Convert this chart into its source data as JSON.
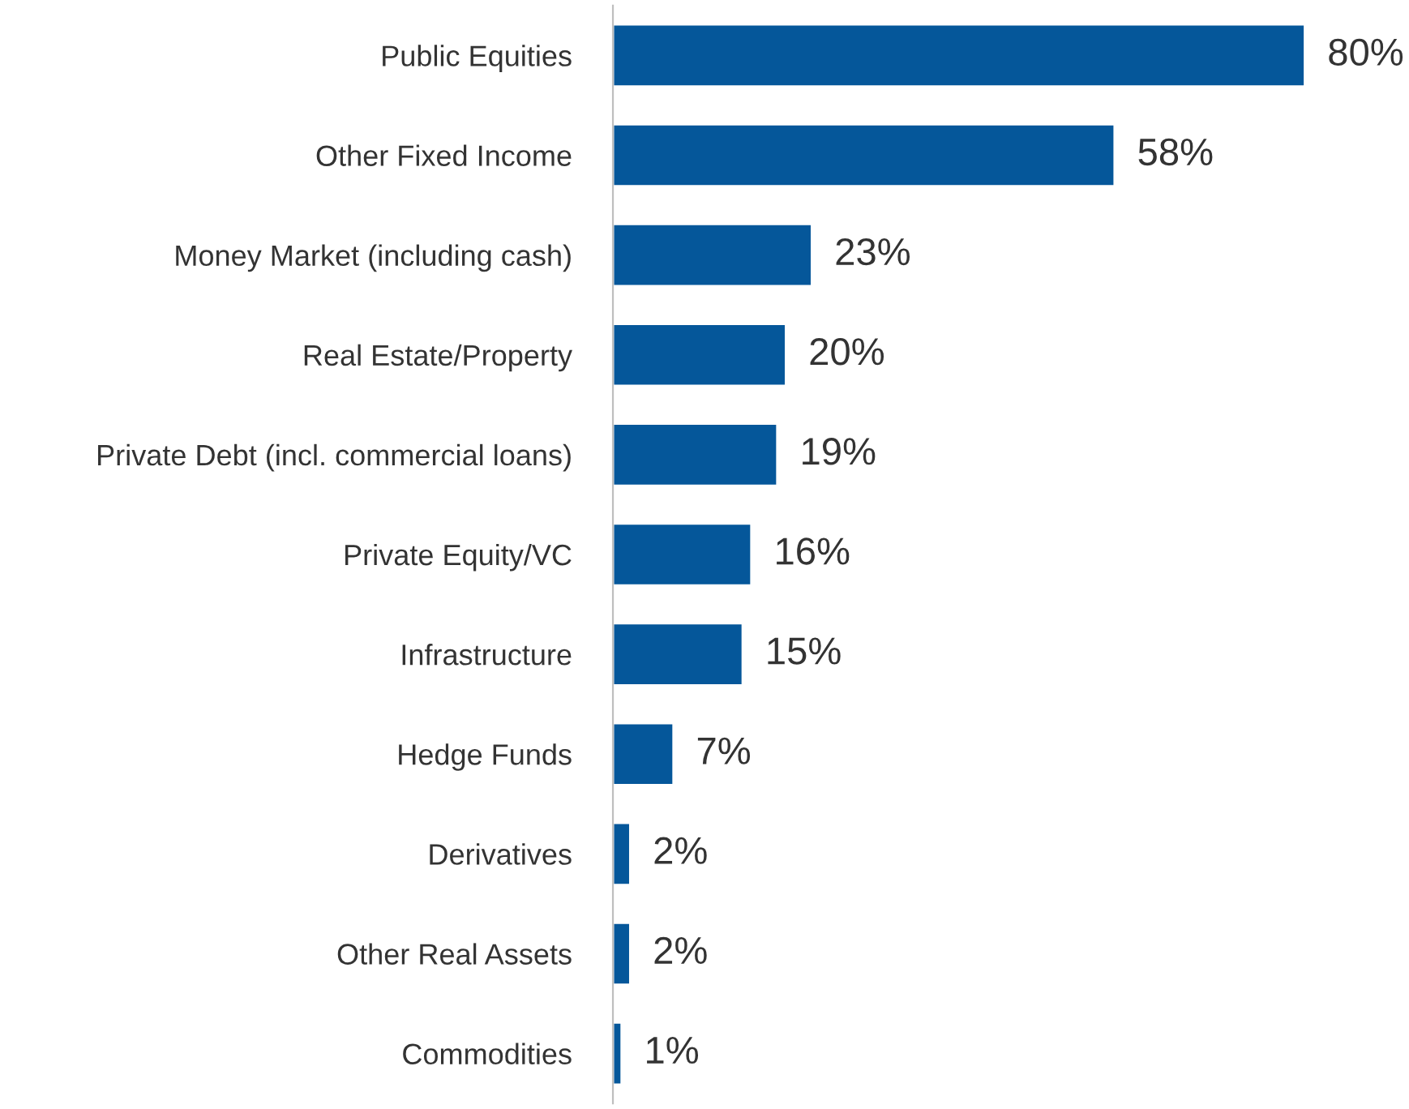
{
  "chart_data": {
    "type": "bar",
    "orientation": "horizontal",
    "categories": [
      "Public Equities",
      "Other Fixed Income",
      "Money Market (including cash)",
      "Real Estate/Property",
      "Private Debt (incl. commercial loans)",
      "Private Equity/VC",
      "Infrastructure",
      "Hedge Funds",
      "Derivatives",
      "Other Real Assets",
      "Commodities"
    ],
    "values": [
      80,
      58,
      23,
      20,
      19,
      16,
      15,
      7,
      2,
      2,
      1
    ],
    "value_labels": [
      "80%",
      "58%",
      "23%",
      "20%",
      "19%",
      "16%",
      "15%",
      "7%",
      "2%",
      "2%",
      "1%"
    ],
    "color": "#05579a",
    "grid": false,
    "legend": false
  }
}
